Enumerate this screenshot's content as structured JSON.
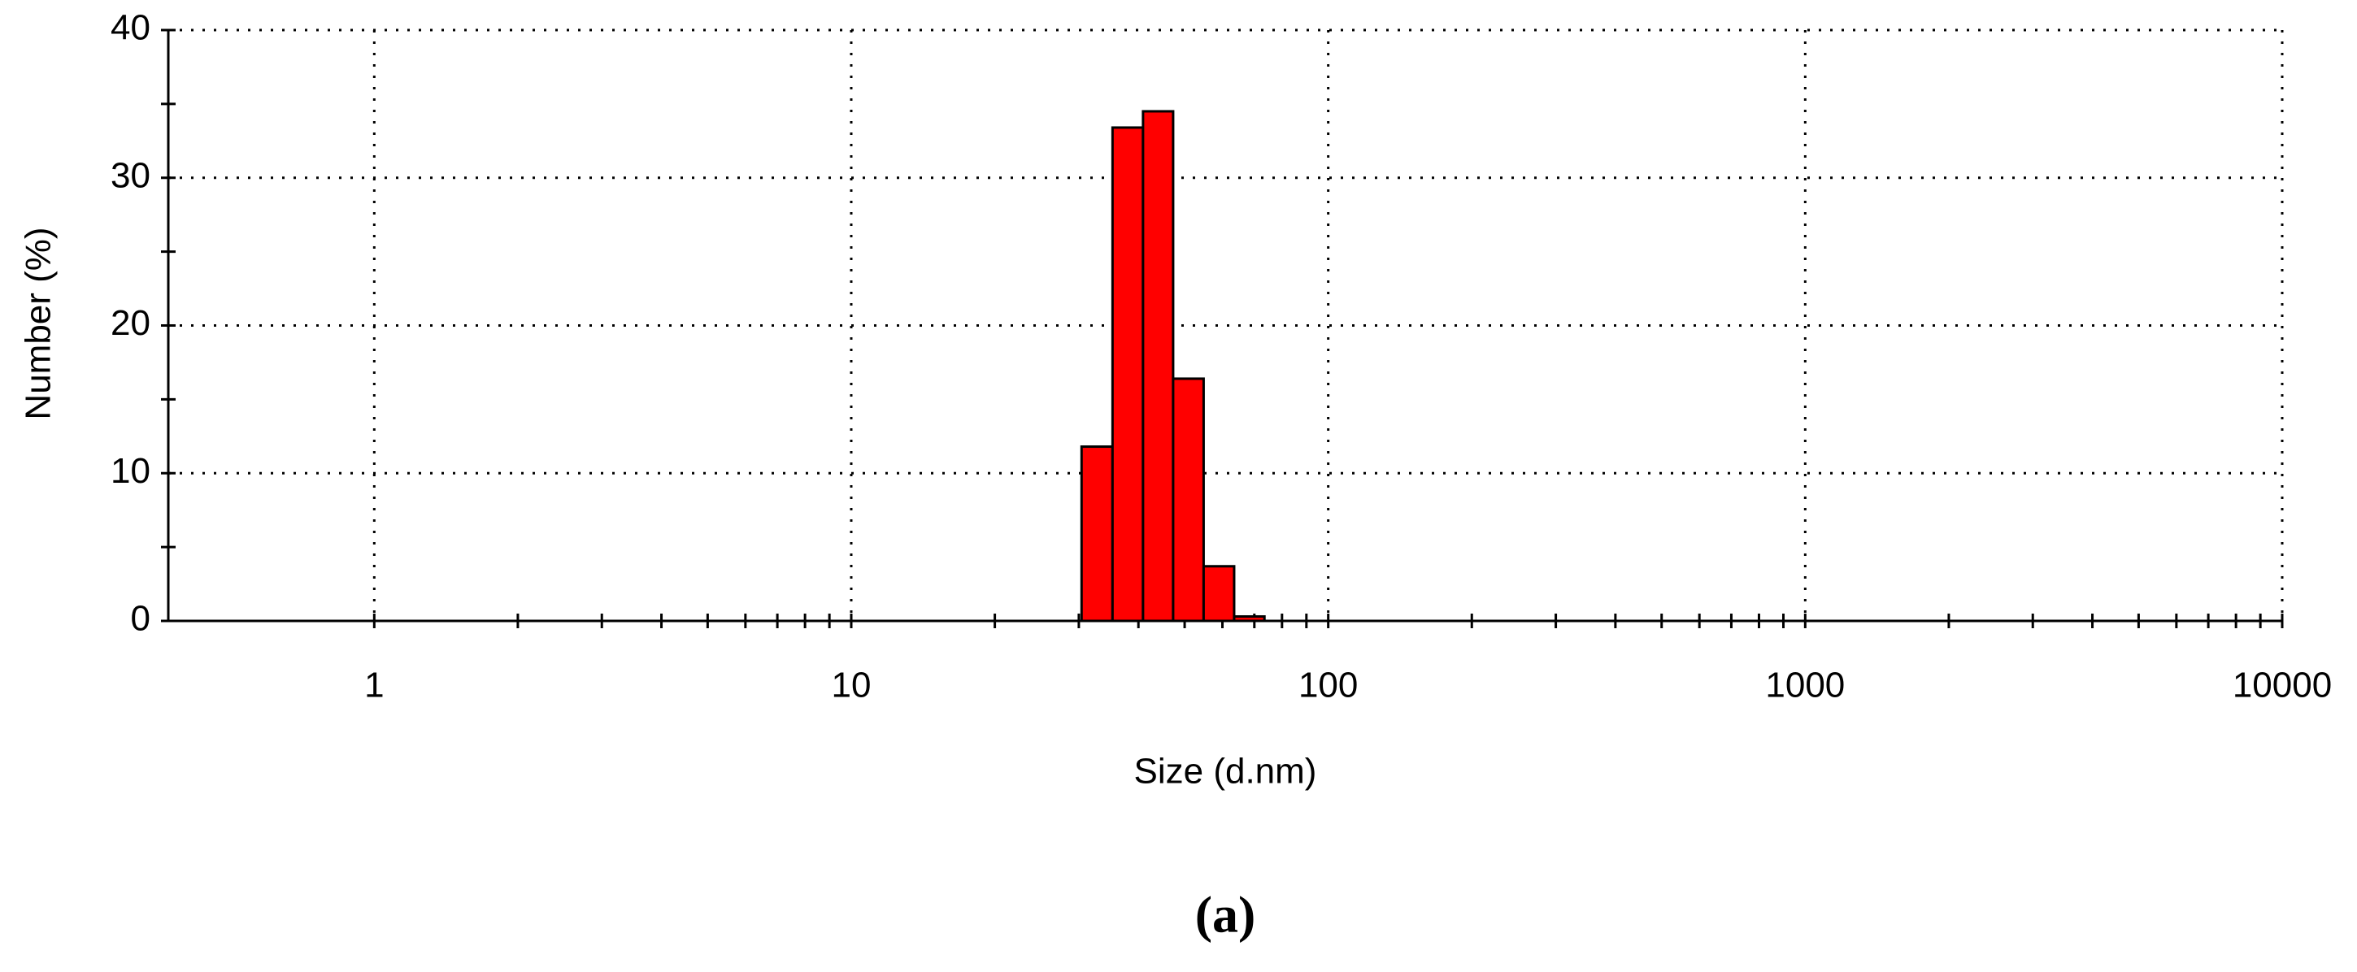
{
  "chart_data": {
    "type": "histogram",
    "x_label": "Size (d.nm)",
    "y_label": "Number (%)",
    "caption": "(a)",
    "bins": [
      30.4,
      35.3,
      40.9,
      47.3,
      54.8,
      63.5,
      73.5
    ],
    "values": [
      11.8,
      33.4,
      34.5,
      16.4,
      3.7,
      0.3
    ],
    "color": "#ff0000",
    "x_log": true,
    "xlim": [
      0.37,
      10000
    ],
    "xticks": [
      1,
      10,
      100,
      1000,
      10000
    ],
    "ylim": [
      0,
      40
    ],
    "yticks": [
      0,
      10,
      20,
      30,
      40
    ],
    "grid": true
  }
}
